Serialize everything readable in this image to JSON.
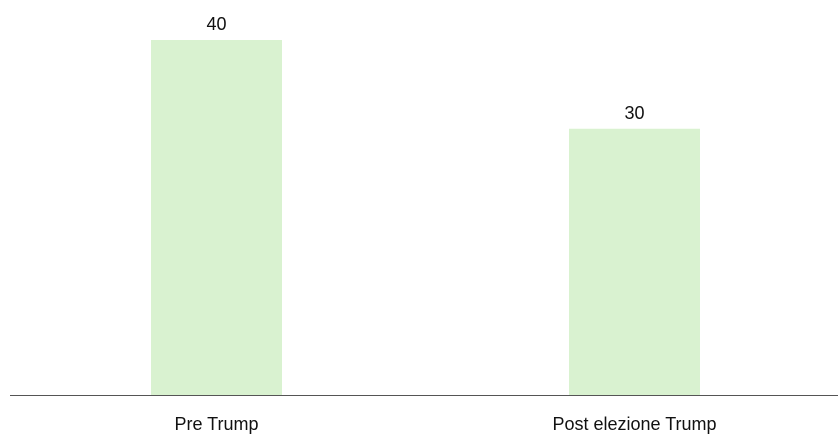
{
  "chart_data": {
    "type": "bar",
    "categories": [
      "Pre Trump",
      "Post elezione Trump"
    ],
    "values": [
      40,
      30
    ],
    "data_labels": [
      "40",
      "30"
    ],
    "title": "",
    "xlabel": "",
    "ylabel": "",
    "ylim": [
      0,
      40
    ],
    "grid": false,
    "legend": "none",
    "colors": {
      "bar": "#d9f2d0",
      "axis": "#555555",
      "text": "#111111"
    }
  }
}
